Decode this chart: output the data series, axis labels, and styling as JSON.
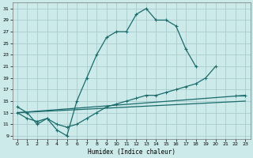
{
  "xlabel": "Humidex (Indice chaleur)",
  "background_color": "#cceaea",
  "grid_color": "#aacccc",
  "line_color": "#1a6b6b",
  "xlim": [
    -0.5,
    23.5
  ],
  "ylim": [
    8.5,
    32
  ],
  "xticks": [
    0,
    1,
    2,
    3,
    4,
    5,
    6,
    7,
    8,
    9,
    10,
    11,
    12,
    13,
    14,
    15,
    16,
    17,
    18,
    19,
    20,
    21,
    22,
    23
  ],
  "yticks": [
    9,
    11,
    13,
    15,
    17,
    19,
    21,
    23,
    25,
    27,
    29,
    31
  ],
  "curve1_x": [
    0,
    1,
    2,
    3,
    4,
    5,
    6,
    7,
    8,
    9,
    10,
    11,
    12,
    13,
    14,
    15,
    16,
    17,
    18
  ],
  "curve1_y": [
    14,
    13,
    11,
    12,
    10,
    9,
    15,
    19,
    23,
    26,
    27,
    27,
    30,
    31,
    29,
    29,
    28,
    24,
    21
  ],
  "curve2_x": [
    0,
    1,
    2,
    3,
    4,
    5,
    6,
    7,
    8,
    9,
    10,
    11,
    12,
    13,
    14,
    15,
    16,
    17,
    18,
    19,
    20,
    22,
    23
  ],
  "curve2_y": [
    13,
    12,
    11.5,
    12,
    11,
    10.5,
    11,
    12,
    13,
    14,
    14.5,
    15,
    15.5,
    16,
    16,
    16.5,
    17,
    17.5,
    18,
    19,
    21,
    16,
    16
  ],
  "curve3_x": [
    0,
    23
  ],
  "curve3_y": [
    13,
    16
  ],
  "curve4_x": [
    0,
    23
  ],
  "curve4_y": [
    13,
    15
  ]
}
